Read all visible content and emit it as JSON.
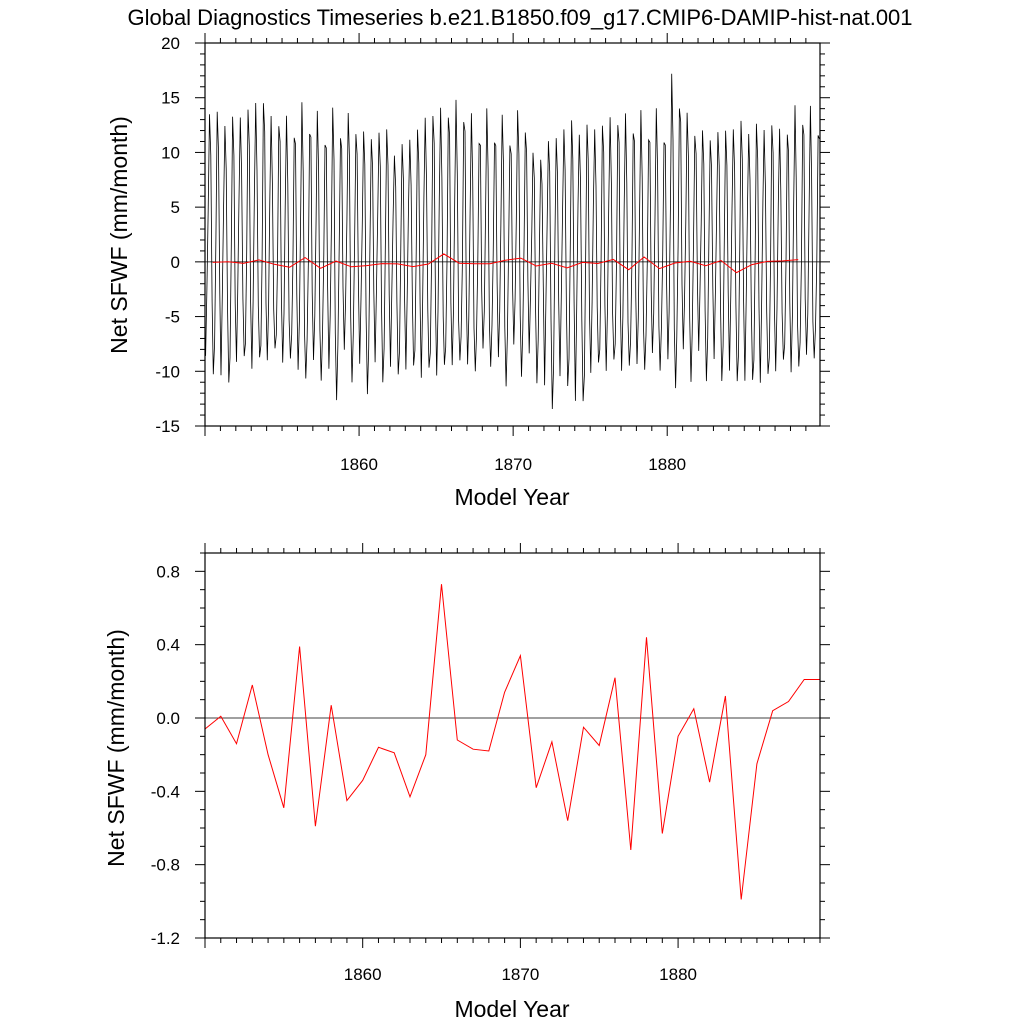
{
  "title": "Global Diagnostics Timeseries b.e21.B1850.f09_g17.CMIP6-DAMIP-hist-nat.001",
  "colors": {
    "monthly": "#000000",
    "annual": "#ff0000",
    "zero_line": "#000000"
  },
  "chart_data": [
    {
      "type": "line",
      "xlabel": "Model Year",
      "ylabel": "Net SFWF (mm/month)",
      "xlim": [
        1850,
        1889.917
      ],
      "ylim": [
        -15,
        20
      ],
      "xticks": [
        "1860",
        "1870",
        "1880"
      ],
      "yticks": [
        "-15",
        "-10",
        "-5",
        "0",
        "5",
        "10",
        "15",
        "20"
      ],
      "grid": false,
      "reference_line": 0,
      "series": [
        {
          "color": "#000000",
          "monthly_pattern": [
            -9.5,
            -4.0,
            5.0,
            14.2,
            9.0,
            -5.0,
            -10.5,
            -7.5,
            1.0,
            13.0,
            11.0,
            -3.0
          ],
          "annual_peaks": [
            14.5,
            13.5,
            14.0,
            14.8,
            13.0,
            12.5,
            13.5,
            12.8,
            13.5,
            13.6,
            12.5,
            12.8,
            10.8,
            12.0,
            13.5,
            13.8,
            14.0,
            12.5,
            13.0,
            12.8,
            13.8,
            10.5,
            12.0,
            13.2,
            12.5,
            12.5,
            13.0,
            12.8,
            12.8,
            13.0,
            16.5,
            13.5,
            12.5,
            12.8,
            13.2,
            12.6,
            12.5,
            12.0,
            13.6,
            13.2
          ],
          "annual_troughs": [
            -9.5,
            -10.8,
            -9.0,
            -9.6,
            -9.0,
            -9.8,
            -11.2,
            -10.8,
            -12.0,
            -10.0,
            -11.0,
            -10.2,
            -10.0,
            -9.8,
            -10.5,
            -10.5,
            -10.0,
            -10.6,
            -9.6,
            -10.8,
            -9.5,
            -10.0,
            -12.6,
            -11.0,
            -13.0,
            -10.0,
            -10.0,
            -10.5,
            -10.5,
            -10.0,
            -11.0,
            -10.0,
            -9.8,
            -10.0,
            -10.5,
            -11.0,
            -11.0,
            -10.0,
            -10.6,
            -9.5
          ]
        },
        {
          "color": "#ff0000",
          "x": [
            1850.5,
            1851.5,
            1852.5,
            1853.5,
            1854.5,
            1855.5,
            1856.5,
            1857.5,
            1858.5,
            1859.5,
            1860.5,
            1861.5,
            1862.5,
            1863.5,
            1864.5,
            1865.5,
            1866.5,
            1867.5,
            1868.5,
            1869.5,
            1870.5,
            1871.5,
            1872.5,
            1873.5,
            1874.5,
            1875.5,
            1876.5,
            1877.5,
            1878.5,
            1879.5,
            1880.5,
            1881.5,
            1882.5,
            1883.5,
            1884.5,
            1885.5,
            1886.5,
            1887.5,
            1888.5
          ],
          "y": [
            -0.05,
            0.01,
            -0.14,
            0.18,
            -0.22,
            -0.49,
            0.39,
            -0.59,
            0.07,
            -0.45,
            -0.34,
            -0.16,
            -0.19,
            -0.43,
            -0.2,
            0.73,
            -0.12,
            -0.17,
            -0.18,
            0.14,
            0.34,
            -0.38,
            -0.13,
            -0.55,
            -0.05,
            -0.15,
            0.22,
            -0.72,
            0.44,
            -0.62,
            -0.1,
            0.05,
            -0.35,
            0.12,
            -0.98,
            -0.25,
            0.04,
            0.09,
            0.21
          ]
        }
      ]
    },
    {
      "type": "line",
      "xlabel": "Model Year",
      "ylabel": "Net SFWF (mm/month)",
      "xlim": [
        1850,
        1889.0
      ],
      "ylim": [
        -1.2,
        0.9
      ],
      "xticks": [
        "1860",
        "1870",
        "1880"
      ],
      "yticks": [
        "-1.2",
        "-0.8",
        "-0.4",
        "0.0",
        "0.4",
        "0.8"
      ],
      "grid": false,
      "reference_line": 0,
      "series": [
        {
          "color": "#ff0000",
          "x": [
            1850.0,
            1851.0,
            1852.0,
            1853.0,
            1854.0,
            1855.0,
            1856.0,
            1857.0,
            1858.0,
            1859.0,
            1860.0,
            1861.0,
            1862.0,
            1863.0,
            1864.0,
            1865.0,
            1866.0,
            1867.0,
            1868.0,
            1869.0,
            1870.0,
            1871.0,
            1872.0,
            1873.0,
            1874.0,
            1875.0,
            1876.0,
            1877.0,
            1878.0,
            1879.0,
            1880.0,
            1881.0,
            1882.0,
            1883.0,
            1884.0,
            1885.0,
            1886.0,
            1887.0,
            1888.0,
            1889.0
          ],
          "y": [
            -0.06,
            0.01,
            -0.14,
            0.18,
            -0.2,
            -0.49,
            0.39,
            -0.59,
            0.07,
            -0.45,
            -0.34,
            -0.16,
            -0.19,
            -0.43,
            -0.2,
            0.73,
            -0.12,
            -0.17,
            -0.18,
            0.14,
            0.34,
            -0.38,
            -0.13,
            -0.56,
            -0.05,
            -0.15,
            0.22,
            -0.72,
            0.44,
            -0.63,
            -0.1,
            0.05,
            -0.35,
            0.12,
            -0.99,
            -0.25,
            0.04,
            0.09,
            0.21,
            0.21
          ]
        }
      ]
    }
  ]
}
